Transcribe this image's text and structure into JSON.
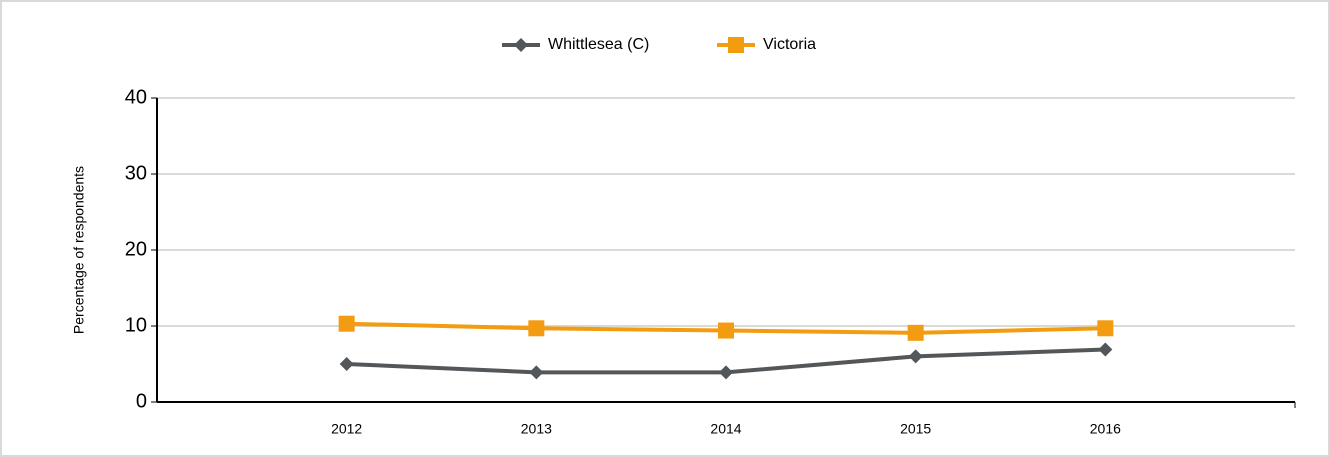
{
  "chart_data": {
    "type": "line",
    "y_label": "Percentage of respondents",
    "categories": [
      "2012",
      "2013",
      "2014",
      "2015",
      "2016"
    ],
    "series": [
      {
        "name": "Whittlesea (C)",
        "color": "#54575a",
        "marker": "diamond",
        "values": [
          5.0,
          3.9,
          3.9,
          6.0,
          6.9
        ]
      },
      {
        "name": "Victoria",
        "color": "#f39c12",
        "marker": "square",
        "values": [
          10.3,
          9.7,
          9.4,
          9.1,
          9.7
        ]
      }
    ],
    "ylim": [
      0,
      40
    ],
    "yticks": [
      0,
      10,
      20,
      30,
      40
    ],
    "grid": true,
    "legend": "top"
  }
}
